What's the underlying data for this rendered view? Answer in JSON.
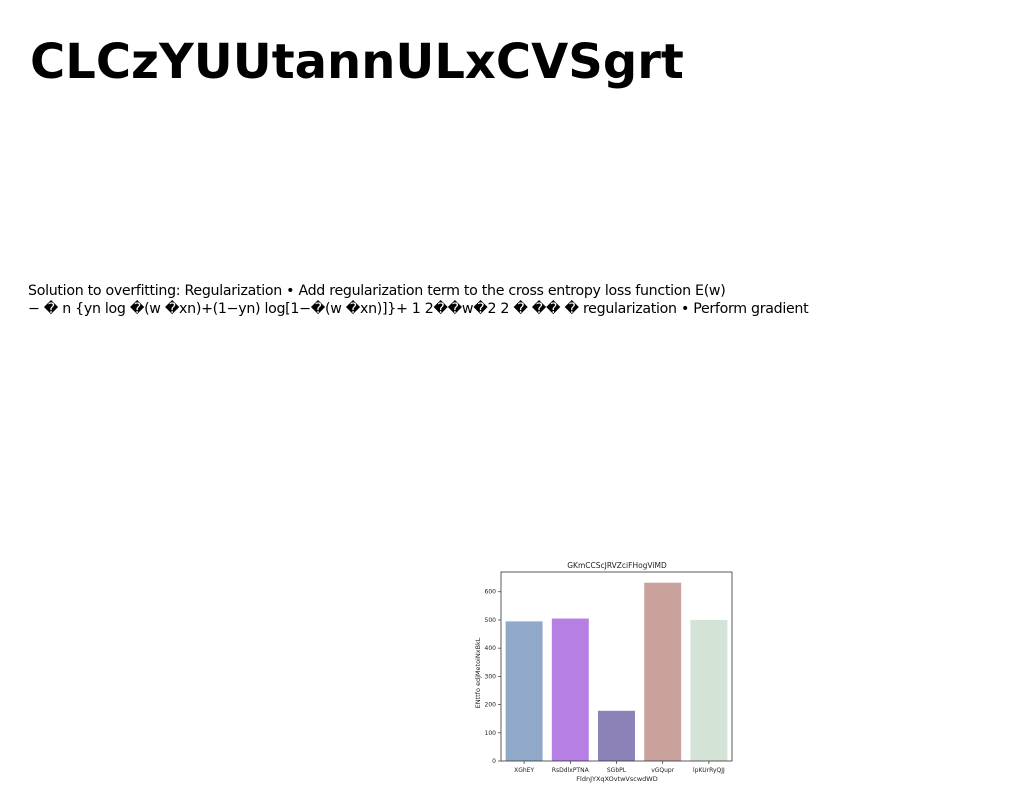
{
  "slide": {
    "title": "CLCzYUUtannULxCVSgrt",
    "body_lines": [
      "Solution to overfitting: Regularization • Add regularization term to the cross entropy loss function E(w)",
      "− � n {yn log �(w �xn)+(1−yn) log[1−�(w �xn)]}+ 1 2��w�2 2 � �� � regularization • Perform gradient"
    ]
  },
  "chart_data": {
    "type": "bar",
    "title": "GKmCCScJRVZciFHogViMD",
    "xlabel": "FldnJYXqXOvtwVscwdWD",
    "ylabel": "ENttfo edjMetoiNxBkL",
    "categories": [
      "XGhEY",
      "RsDdlxPTNA",
      "SGbPL",
      "vGQupr",
      "lpKUrRyQJJ"
    ],
    "values": [
      495,
      505,
      178,
      632,
      500
    ],
    "colors": [
      "#91a9c8",
      "#b57fe3",
      "#8c82b8",
      "#c9a29d",
      "#d3e3d5"
    ],
    "ylim": [
      0,
      670
    ],
    "yticks": [
      0,
      100,
      200,
      300,
      400,
      500,
      600
    ],
    "grid": false,
    "legend": "none"
  }
}
